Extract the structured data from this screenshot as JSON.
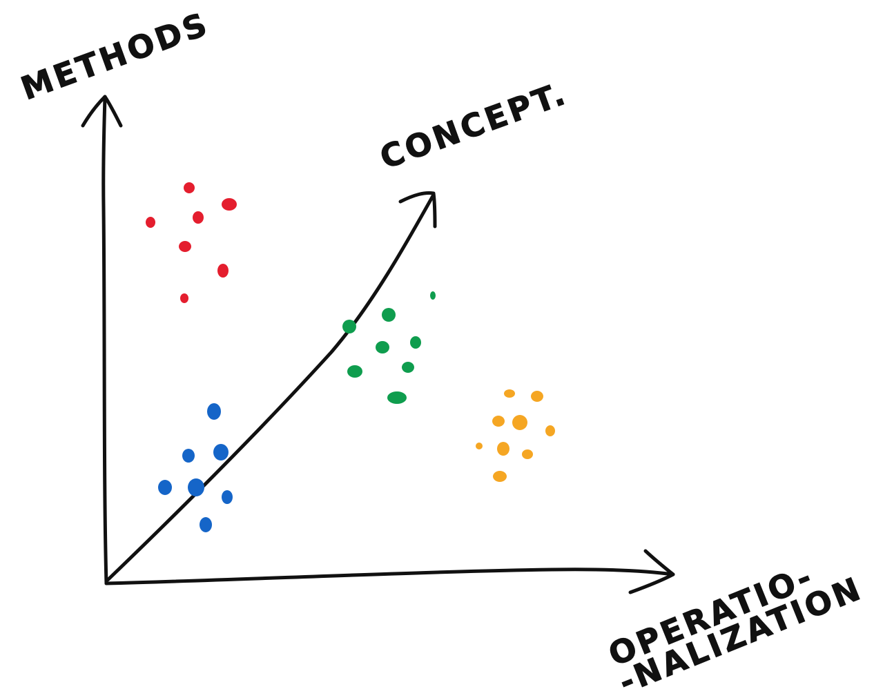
{
  "labels": {
    "y_axis": "METHODS",
    "z_axis": "CONCEPT.",
    "x_axis_line1": "OPERATIO-",
    "x_axis_line2": "-NALIZATION"
  },
  "colors": {
    "axis": "#111111",
    "red": "#e41e2e",
    "green": "#0f9d4e",
    "blue": "#1565c8",
    "orange": "#f5a623"
  },
  "clusters": [
    {
      "name": "red-cluster",
      "color": "#e41e2e"
    },
    {
      "name": "green-cluster",
      "color": "#0f9d4e"
    },
    {
      "name": "blue-cluster",
      "color": "#1565c8"
    },
    {
      "name": "orange-cluster",
      "color": "#f5a623"
    }
  ]
}
